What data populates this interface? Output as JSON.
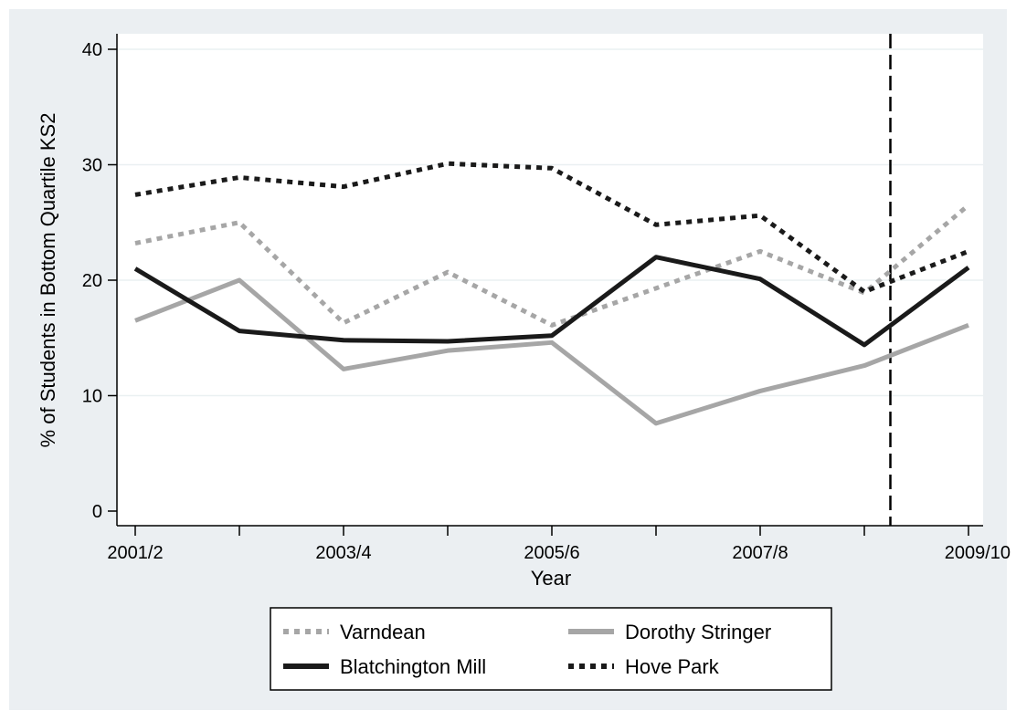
{
  "chart_data": {
    "type": "line",
    "title": "",
    "xlabel": "Year",
    "ylabel": "% of Students in Bottom Quartile KS2",
    "x": [
      "2001/2",
      "2002/3",
      "2003/4",
      "2004/5",
      "2005/6",
      "2006/7",
      "2007/8",
      "2008/9",
      "2009/10"
    ],
    "x_tick_labels": [
      "2001/2",
      "",
      "2003/4",
      "",
      "2005/6",
      "",
      "2007/8",
      "",
      "2009/10"
    ],
    "y_ticks": [
      0,
      10,
      20,
      30,
      40
    ],
    "ylim": [
      0,
      40
    ],
    "grid": "horizontal",
    "vertical_line_at": 7.25,
    "legend_position": "bottom",
    "series": [
      {
        "name": "Varndean",
        "values": [
          23.2,
          25.0,
          16.3,
          20.7,
          16.1,
          19.3,
          22.5,
          18.9,
          26.5
        ],
        "color": "#a6a6a6",
        "style": "dotted"
      },
      {
        "name": "Dorothy Stringer",
        "values": [
          16.5,
          20.0,
          12.3,
          13.9,
          14.6,
          7.6,
          10.4,
          12.6,
          16.1
        ],
        "color": "#a6a6a6",
        "style": "solid"
      },
      {
        "name": "Blatchington Mill",
        "values": [
          21.0,
          15.6,
          14.8,
          14.7,
          15.2,
          22.0,
          20.1,
          14.4,
          21.1
        ],
        "color": "#1a1a1a",
        "style": "solid"
      },
      {
        "name": "Hove Park",
        "values": [
          27.4,
          28.9,
          28.1,
          30.1,
          29.7,
          24.8,
          25.6,
          19.0,
          22.5
        ],
        "color": "#1a1a1a",
        "style": "dotted"
      }
    ],
    "colors": {
      "outer_background": "#ebeff2",
      "plot_background": "#ffffff",
      "gridline": "#eaf0f2"
    }
  }
}
